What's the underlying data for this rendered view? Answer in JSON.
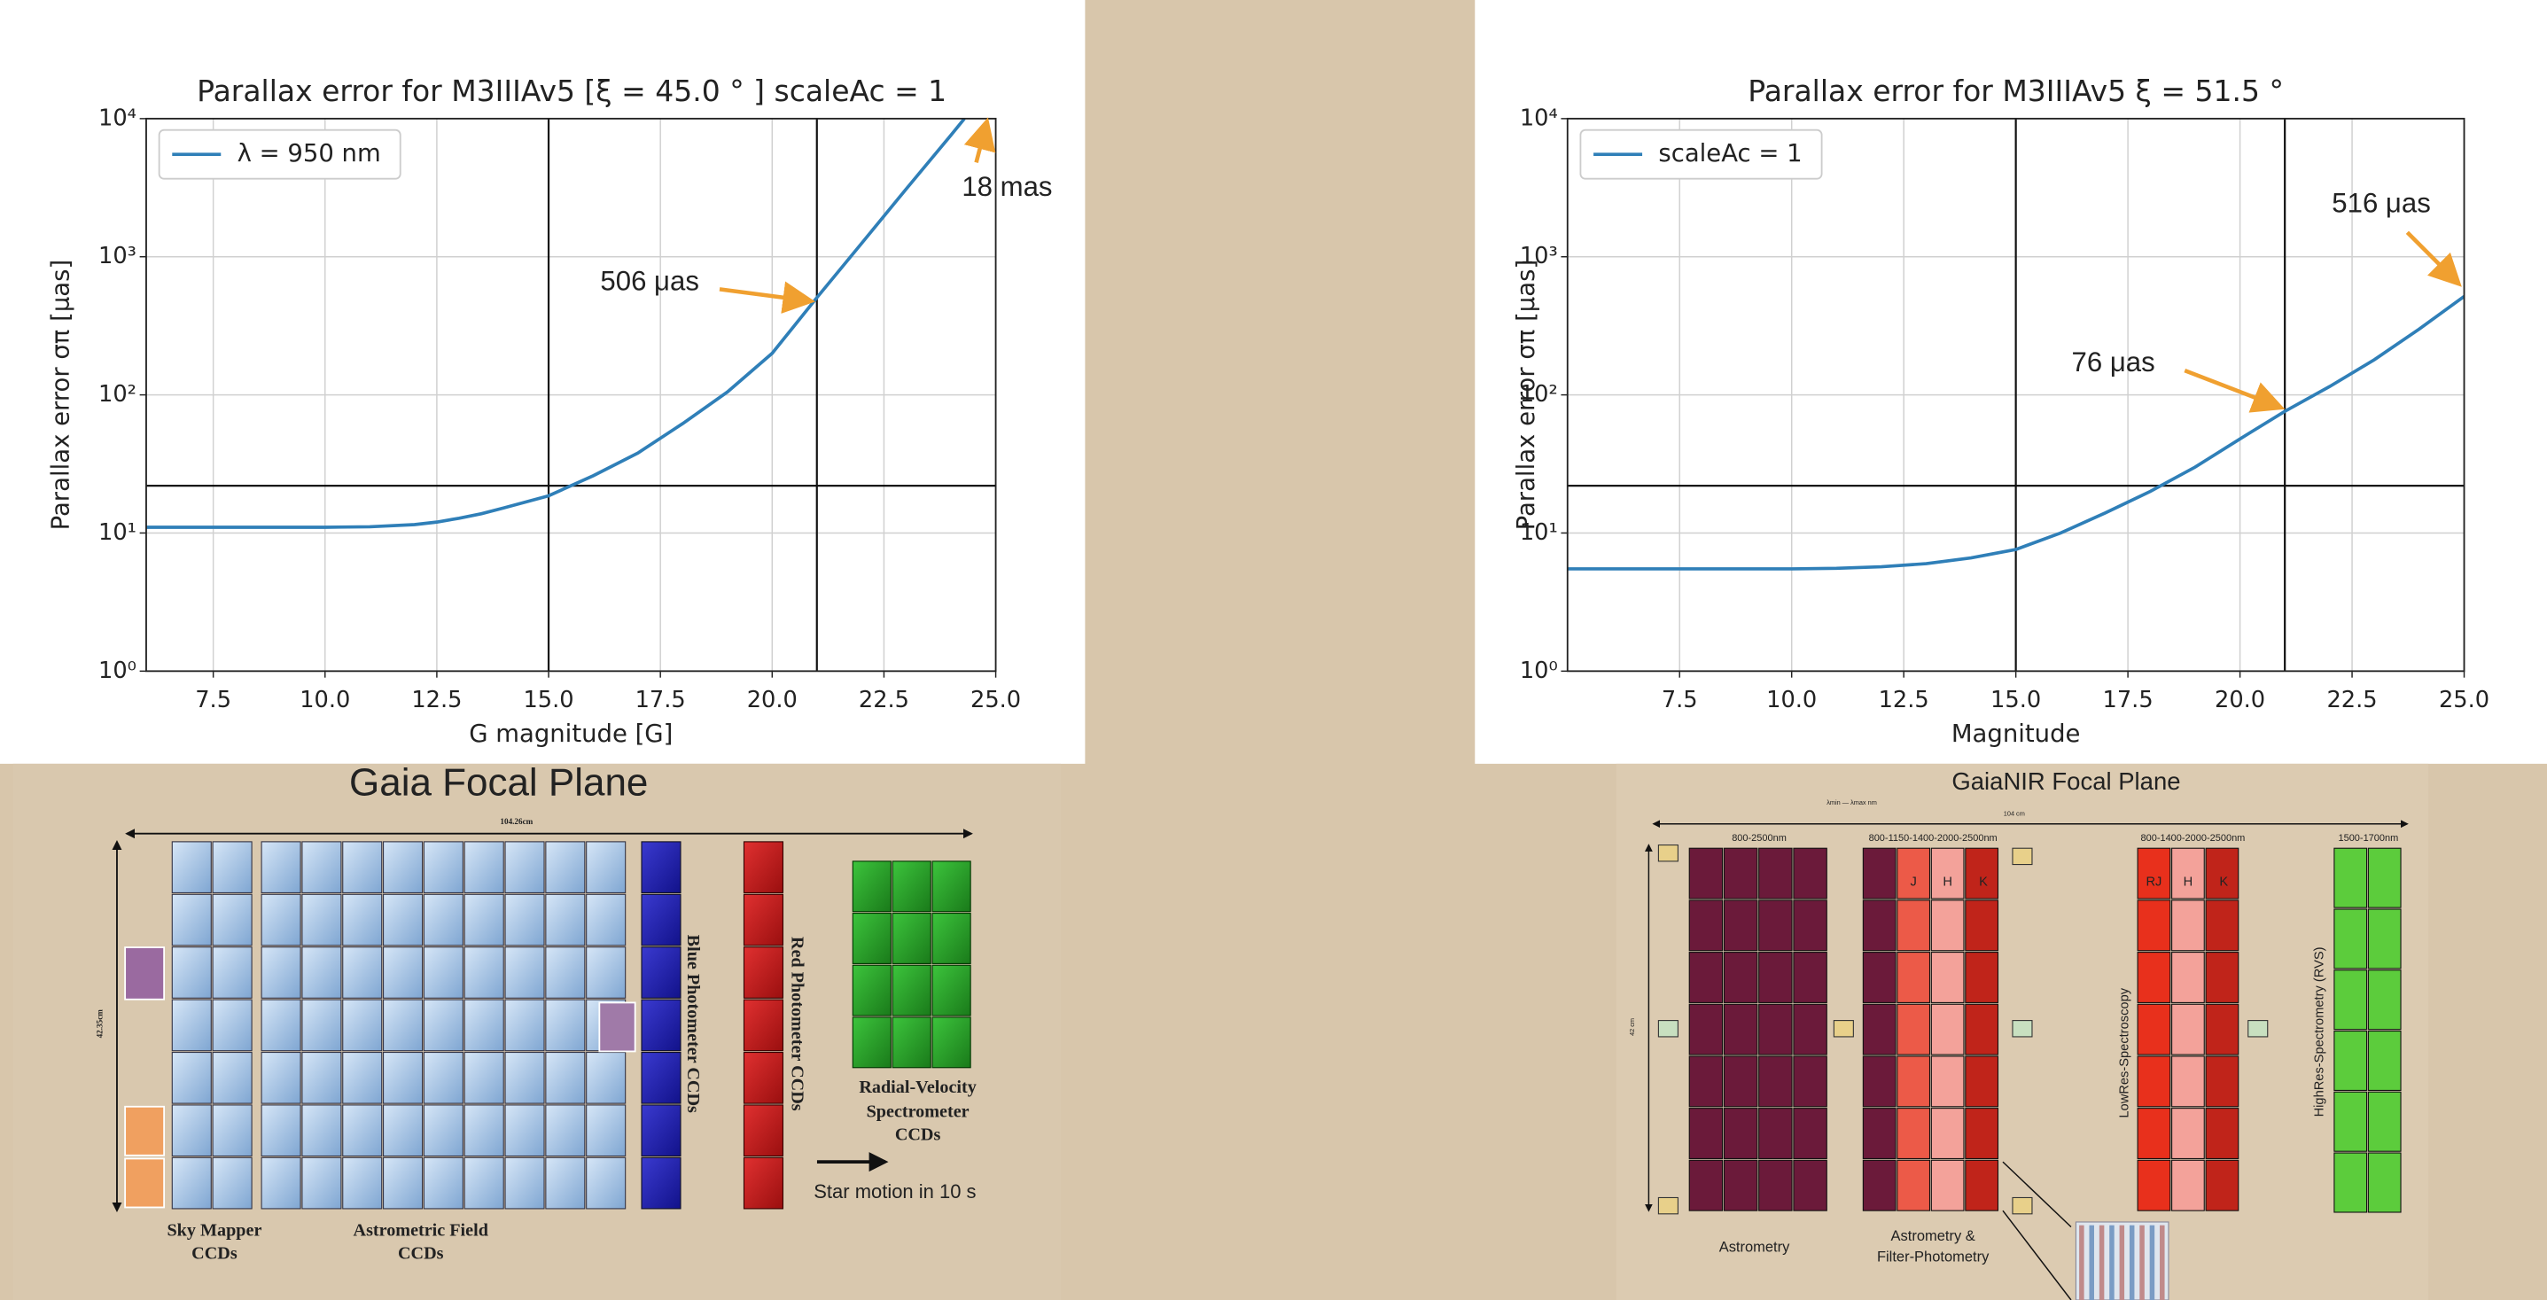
{
  "chart_data": [
    {
      "type": "line",
      "title": "Parallax error for M3IIIAv5 [ξ = 45.0 ° ] scaleAc = 1",
      "x_label": "G magnitude [G]",
      "y_label": "Parallax error σπ [μas]",
      "x": [
        6,
        7,
        8,
        9,
        10,
        11,
        12,
        12.5,
        13,
        13.5,
        14,
        15,
        16,
        17,
        18,
        19,
        20,
        21,
        22,
        23,
        24,
        24.3
      ],
      "series": [
        {
          "name": "λ = 950 nm",
          "color": "#2f7fb8",
          "values": [
            11,
            11,
            11,
            11,
            11,
            11.1,
            11.5,
            12,
            12.8,
            13.8,
            15.2,
            18.6,
            26,
            38,
            62,
            105,
            200,
            506,
            1250,
            3100,
            7600,
            10000
          ]
        }
      ],
      "xlim": [
        6,
        25
      ],
      "xticks": [
        7.5,
        {
          "value": 10,
          "label": "10.0"
        },
        12.5,
        {
          "value": 15,
          "label": "15.0"
        },
        17.5,
        {
          "value": 20,
          "label": "20.0"
        },
        22.5,
        {
          "value": 25,
          "label": "25.0"
        }
      ],
      "ylim": [
        1,
        10000
      ],
      "log_y": true,
      "yticks": [
        {
          "value": 1,
          "label": "10⁰"
        },
        {
          "value": 10,
          "label": "10¹"
        },
        {
          "value": 100,
          "label": "10²"
        },
        {
          "value": 1000,
          "label": "10³"
        },
        {
          "value": 10000,
          "label": "10⁴"
        }
      ],
      "grid": true,
      "legend": "upper left",
      "vlines": [
        15,
        21
      ],
      "hlines": [
        22
      ],
      "annotations": [
        "506 μas",
        "18 mas"
      ]
    },
    {
      "type": "line",
      "title": "Parallax error for M3IIIAv5 ξ = 51.5 ° ",
      "x_label": "Magnitude",
      "y_label": "Parallax error σπ [μas]",
      "x": [
        5,
        6,
        7,
        8,
        9,
        10,
        11,
        12,
        13,
        14,
        15,
        16,
        17,
        18,
        19,
        20,
        21,
        22,
        23,
        24,
        25
      ],
      "series": [
        {
          "name": "scaleAc = 1",
          "color": "#2f7fb8",
          "values": [
            5.5,
            5.5,
            5.5,
            5.5,
            5.5,
            5.5,
            5.55,
            5.7,
            6,
            6.6,
            7.6,
            10,
            14,
            20,
            30,
            48,
            76,
            115,
            180,
            300,
            516
          ]
        }
      ],
      "xlim": [
        5,
        25
      ],
      "xticks": [
        7.5,
        {
          "value": 10,
          "label": "10.0"
        },
        12.5,
        {
          "value": 15,
          "label": "15.0"
        },
        17.5,
        {
          "value": 20,
          "label": "20.0"
        },
        22.5,
        {
          "value": 25,
          "label": "25.0"
        }
      ],
      "ylim": [
        1,
        10000
      ],
      "log_y": true,
      "yticks": [
        {
          "value": 1,
          "label": "10⁰"
        },
        {
          "value": 10,
          "label": "10¹"
        },
        {
          "value": 100,
          "label": "10²"
        },
        {
          "value": 1000,
          "label": "10³"
        },
        {
          "value": 10000,
          "label": "10⁴"
        }
      ],
      "grid": true,
      "legend": "upper left",
      "vlines": [
        15,
        21
      ],
      "hlines": [
        22
      ],
      "annotations": [
        "516 μas",
        "76 μas"
      ]
    }
  ],
  "gaia_focal_plane": {
    "texts": [
      "Gaia Focal Plane",
      "104.26cm",
      "42.35cm",
      "Blue Photometer CCDs",
      "Red Photometer CCDs",
      "Radial-Velocity",
      "Spectrometer",
      "CCDs",
      "Star motion in 10 s",
      "Sky Mapper",
      "CCDs",
      "Astrometric Field",
      "CCDs"
    ]
  },
  "gaianir_focal_plane": {
    "texts": [
      "GaiaNIR Focal Plane",
      "λmin — λmax nm",
      "104 cm",
      "42 cm",
      "800-2500nm",
      "800-1150-1400-2000-2500nm",
      "800-1400-2000-2500nm",
      "1500-1700nm",
      "J",
      "H",
      "K",
      "RJ",
      "H",
      "K",
      "LowRes-Spectroscopy",
      "HighRes-Spectrometry (RVS)",
      "Astrometry",
      "Astrometry &",
      "Filter-Photometry"
    ]
  }
}
